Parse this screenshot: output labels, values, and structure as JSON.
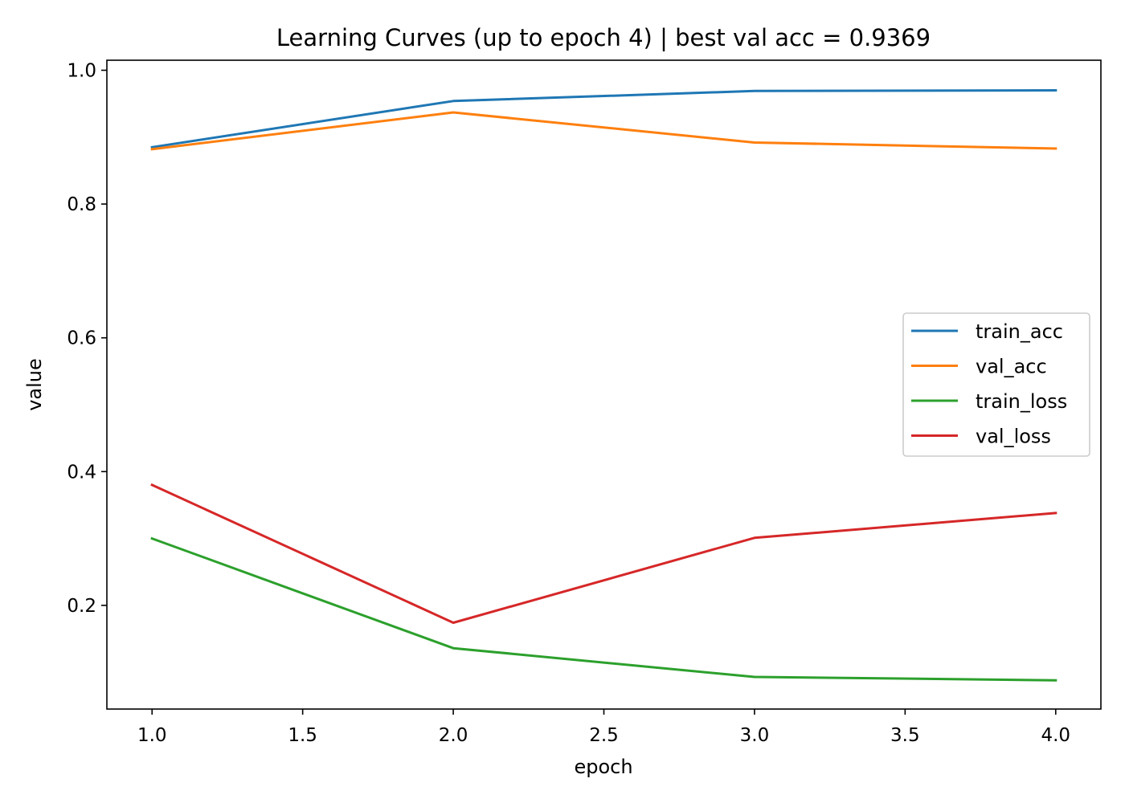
{
  "chart_data": {
    "type": "line",
    "title": "Learning Curves (up to epoch 4) | best val acc = 0.9369",
    "xlabel": "epoch",
    "ylabel": "value",
    "xlim": [
      0.85,
      4.15
    ],
    "ylim": [
      0.045,
      1.015
    ],
    "x_ticks": [
      1.0,
      1.5,
      2.0,
      2.5,
      3.0,
      3.5,
      4.0
    ],
    "x_tick_labels": [
      "1.0",
      "1.5",
      "2.0",
      "2.5",
      "3.0",
      "3.5",
      "4.0"
    ],
    "y_ticks": [
      0.2,
      0.4,
      0.6,
      0.8,
      1.0
    ],
    "y_tick_labels": [
      "0.2",
      "0.4",
      "0.6",
      "0.8",
      "1.0"
    ],
    "grid": false,
    "legend_position": "center-right",
    "x": [
      1,
      2,
      3,
      4
    ],
    "series": [
      {
        "name": "train_acc",
        "color": "#1f77b4",
        "values": [
          0.885,
          0.954,
          0.969,
          0.97
        ]
      },
      {
        "name": "val_acc",
        "color": "#ff7f0e",
        "values": [
          0.882,
          0.937,
          0.892,
          0.883
        ]
      },
      {
        "name": "train_loss",
        "color": "#2ca02c",
        "values": [
          0.3,
          0.136,
          0.093,
          0.088
        ]
      },
      {
        "name": "val_loss",
        "color": "#d62728",
        "values": [
          0.38,
          0.174,
          0.301,
          0.338
        ]
      }
    ]
  }
}
